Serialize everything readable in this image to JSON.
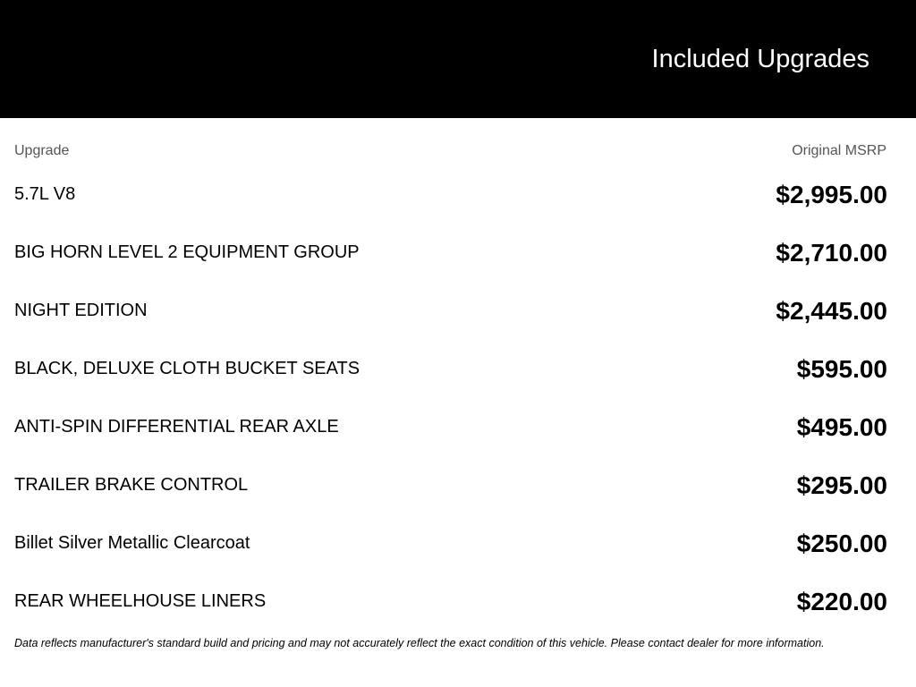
{
  "header": {
    "title": "Included Upgrades"
  },
  "table": {
    "col_upgrade": "Upgrade",
    "col_msrp": "Original MSRP",
    "rows": [
      {
        "name": "5.7L V8",
        "price": "$2,995.00"
      },
      {
        "name": "BIG HORN LEVEL 2 EQUIPMENT GROUP",
        "price": "$2,710.00"
      },
      {
        "name": "NIGHT EDITION",
        "price": "$2,445.00"
      },
      {
        "name": "BLACK, DELUXE CLOTH BUCKET SEATS",
        "price": "$595.00"
      },
      {
        "name": "ANTI-SPIN DIFFERENTIAL REAR AXLE",
        "price": "$495.00"
      },
      {
        "name": "TRAILER BRAKE CONTROL",
        "price": "$295.00"
      },
      {
        "name": "Billet Silver Metallic Clearcoat",
        "price": "$250.00"
      },
      {
        "name": "REAR WHEELHOUSE LINERS",
        "price": "$220.00"
      }
    ]
  },
  "disclaimer": "Data reflects manufacturer's standard build and pricing and may not accurately reflect the exact condition of this vehicle. Please contact dealer for more information."
}
